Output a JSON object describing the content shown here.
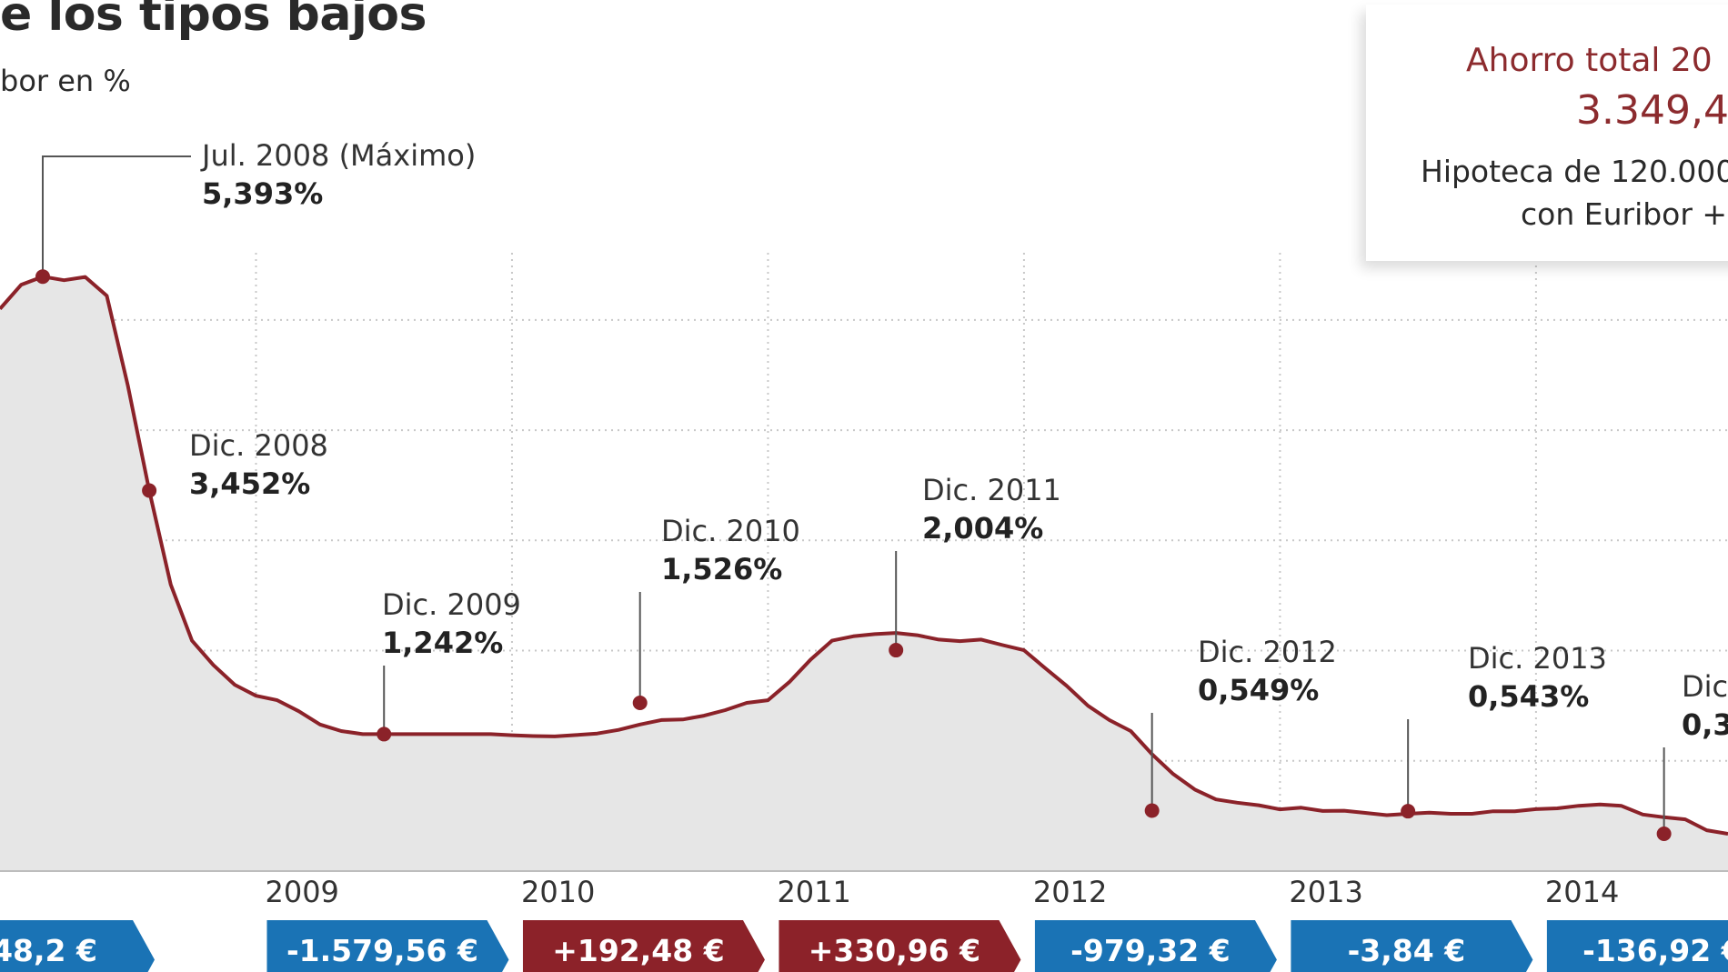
{
  "header": {
    "title": "e los tipos bajos",
    "subtitle": "bor en %"
  },
  "infobox": {
    "title": "Ahorro total 20",
    "value": "3.349,4",
    "line1": "Hipoteca de 120.000",
    "line2": "con Euribor +"
  },
  "colors": {
    "line": "#8b2229",
    "area": "#e6e6e6",
    "blue": "#1a73b5",
    "red": "#8c2229",
    "grid": "#c8c8c8"
  },
  "chart_data": {
    "type": "area",
    "ylabel": "bor en %",
    "ylim": [
      0,
      6.5
    ],
    "xlim": [
      2008.0,
      2014.75
    ],
    "years": [
      "2009",
      "2010",
      "2011",
      "2012",
      "2013",
      "2014"
    ],
    "series": [
      {
        "x": [
          2008.0,
          2008.083,
          2008.167,
          2008.25,
          2008.333,
          2008.417,
          2008.5,
          2008.583,
          2008.667,
          2008.75,
          2008.833,
          2008.917,
          2009.0,
          2009.083,
          2009.167,
          2009.25,
          2009.333,
          2009.417,
          2009.5,
          2009.583,
          2009.667,
          2009.75,
          2009.833,
          2009.917,
          2010.0,
          2010.083,
          2010.167,
          2010.25,
          2010.333,
          2010.417,
          2010.5,
          2010.583,
          2010.667,
          2010.75,
          2010.833,
          2010.917,
          2011.0,
          2011.083,
          2011.167,
          2011.25,
          2011.333,
          2011.417,
          2011.5,
          2011.583,
          2011.667,
          2011.75,
          2011.833,
          2011.917,
          2012.0,
          2012.083,
          2012.167,
          2012.25,
          2012.333,
          2012.417,
          2012.5,
          2012.583,
          2012.667,
          2012.75,
          2012.833,
          2012.917,
          2013.0,
          2013.083,
          2013.167,
          2013.25,
          2013.333,
          2013.417,
          2013.5,
          2013.583,
          2013.667,
          2013.75,
          2013.833,
          2013.917,
          2014.0,
          2014.083,
          2014.167,
          2014.25,
          2014.333,
          2014.417,
          2014.5,
          2014.583,
          2014.667,
          2014.75
        ],
        "values": [
          5.1,
          5.32,
          5.393,
          5.36,
          5.39,
          5.22,
          4.4,
          3.452,
          2.6,
          2.09,
          1.87,
          1.69,
          1.59,
          1.55,
          1.45,
          1.33,
          1.27,
          1.242,
          1.242,
          1.242,
          1.242,
          1.242,
          1.242,
          1.242,
          1.232,
          1.225,
          1.222,
          1.234,
          1.248,
          1.281,
          1.33,
          1.37,
          1.375,
          1.41,
          1.46,
          1.526,
          1.55,
          1.714,
          1.92,
          2.09,
          2.13,
          2.15,
          2.16,
          2.14,
          2.1,
          2.086,
          2.1,
          2.05,
          2.004,
          1.84,
          1.68,
          1.5,
          1.37,
          1.27,
          1.06,
          0.88,
          0.74,
          0.65,
          0.62,
          0.597,
          0.56,
          0.575,
          0.545,
          0.548,
          0.528,
          0.507,
          0.52,
          0.53,
          0.52,
          0.52,
          0.543,
          0.543,
          0.562,
          0.569,
          0.592,
          0.604,
          0.592,
          0.513,
          0.488,
          0.469,
          0.37,
          0.338
        ]
      }
    ],
    "annotations": [
      {
        "label": "Jul. 2008 (Máximo)",
        "value": "5,393%",
        "x": 2008.167,
        "y": 5.393
      },
      {
        "label": "Dic. 2008",
        "value": "3,452%",
        "x": 2008.583,
        "y": 3.452
      },
      {
        "label": "Dic. 2009",
        "value": "1,242%",
        "x": 2009.5,
        "y": 1.242
      },
      {
        "label": "Dic. 2010",
        "value": "1,526%",
        "x": 2010.5,
        "y": 1.526
      },
      {
        "label": "Dic. 2011",
        "value": "2,004%",
        "x": 2011.5,
        "y": 2.004
      },
      {
        "label": "Dic. 2012",
        "value": "0,549%",
        "x": 2012.5,
        "y": 0.549
      },
      {
        "label": "Dic. 2013",
        "value": "0,543%",
        "x": 2013.5,
        "y": 0.543
      },
      {
        "label": "Dic",
        "value": "0,3",
        "x": 2014.5,
        "y": 0.338
      }
    ],
    "savings": [
      {
        "value": "48,2 €",
        "sign": "negative"
      },
      {
        "value": "-1.579,56 €",
        "sign": "negative"
      },
      {
        "value": "+192,48 €",
        "sign": "positive"
      },
      {
        "value": "+330,96 €",
        "sign": "positive"
      },
      {
        "value": "-979,32 €",
        "sign": "negative"
      },
      {
        "value": "-3,84  €",
        "sign": "negative"
      },
      {
        "value": "-136,92 €",
        "sign": "negative"
      }
    ]
  }
}
